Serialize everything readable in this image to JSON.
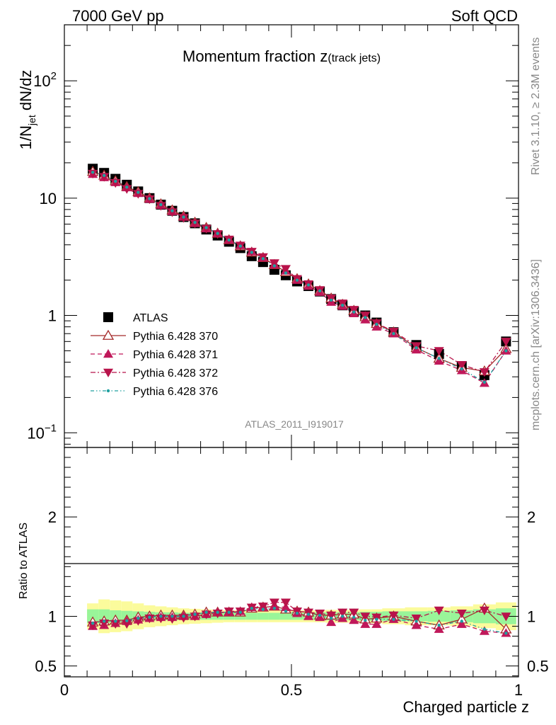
{
  "header": {
    "left": "7000 GeV pp",
    "right": "Soft QCD"
  },
  "side_labels": {
    "rivet": "Rivet 3.1.10, ≥ 2.3M events",
    "mcplots": "mcplots.cern.ch [arXiv:1306.3436]"
  },
  "chart_data": [
    {
      "type": "scatter",
      "panel": "main",
      "title_main": "Momentum fraction z",
      "title_sub": "(track jets)",
      "ylabel": "1/N",
      "ylabel_sub": "jet",
      "ylabel_tail": " dN/dz",
      "yscale": "log",
      "ylim": [
        0.075,
        300
      ],
      "xlim": [
        0,
        1
      ],
      "y_ticks": [
        {
          "value": 0.1,
          "base": "10",
          "exp": "−1"
        },
        {
          "value": 1,
          "base": "1",
          "exp": ""
        },
        {
          "value": 10,
          "base": "10",
          "exp": ""
        },
        {
          "value": 100,
          "base": "10",
          "exp": "2"
        }
      ],
      "watermark": "ATLAS_2011_I919017",
      "legend_position": "left-middle",
      "x": [
        0.0625,
        0.0875,
        0.1125,
        0.1375,
        0.1625,
        0.1875,
        0.2125,
        0.2375,
        0.2625,
        0.2875,
        0.3125,
        0.3375,
        0.3625,
        0.3875,
        0.4125,
        0.4375,
        0.4625,
        0.4875,
        0.5125,
        0.5375,
        0.5625,
        0.5875,
        0.6125,
        0.6375,
        0.6625,
        0.6875,
        0.725,
        0.775,
        0.825,
        0.875,
        0.925,
        0.9725
      ],
      "series": [
        {
          "name": "ATLAS",
          "color": "#000000",
          "marker": "square",
          "values": [
            17.8,
            16.4,
            14.6,
            13.0,
            11.4,
            10.0,
            8.8,
            7.8,
            6.9,
            6.1,
            5.4,
            4.8,
            4.25,
            3.75,
            3.2,
            2.85,
            2.45,
            2.2,
            1.95,
            1.78,
            1.6,
            1.38,
            1.22,
            1.08,
            1.0,
            0.87,
            0.72,
            0.56,
            0.47,
            0.37,
            0.31,
            0.6
          ]
        },
        {
          "name": "Pythia 6.428 370",
          "color": "#a52a2a",
          "marker": "open-triangle-up",
          "line": "solid",
          "values": [
            16.8,
            15.6,
            14.0,
            12.5,
            11.3,
            10.0,
            8.9,
            7.9,
            7.0,
            6.2,
            5.6,
            5.0,
            4.4,
            3.9,
            3.45,
            3.1,
            2.7,
            2.35,
            2.05,
            1.85,
            1.62,
            1.4,
            1.24,
            1.1,
            0.97,
            0.85,
            0.72,
            0.53,
            0.43,
            0.36,
            0.335,
            0.52
          ]
        },
        {
          "name": "Pythia 6.428 371",
          "color": "#c0185a",
          "marker": "triangle-up",
          "line": "dashed",
          "values": [
            16.0,
            15.0,
            13.6,
            12.3,
            11.0,
            9.8,
            8.7,
            7.7,
            6.9,
            6.1,
            5.5,
            5.0,
            4.4,
            3.95,
            3.5,
            3.1,
            2.7,
            2.4,
            2.0,
            1.78,
            1.58,
            1.3,
            1.2,
            1.04,
            0.92,
            0.8,
            0.7,
            0.51,
            0.41,
            0.34,
            0.265,
            0.5
          ]
        },
        {
          "name": "Pythia 6.428 372",
          "color": "#b8134a",
          "marker": "triangle-down",
          "line": "dashdot",
          "values": [
            16.2,
            15.2,
            13.5,
            12.0,
            10.9,
            9.8,
            8.6,
            7.6,
            6.8,
            6.1,
            5.5,
            4.95,
            4.45,
            3.95,
            3.5,
            3.15,
            2.8,
            2.5,
            2.05,
            1.85,
            1.65,
            1.4,
            1.27,
            1.12,
            1.0,
            0.86,
            0.73,
            0.55,
            0.5,
            0.38,
            0.33,
            0.6
          ]
        },
        {
          "name": "Pythia 6.428 376",
          "color": "#20a0a0",
          "marker": "small-dot",
          "line": "dashdotdot",
          "values": [
            16.6,
            15.6,
            13.9,
            12.4,
            11.2,
            9.9,
            8.8,
            7.8,
            6.9,
            6.2,
            5.6,
            5.0,
            4.4,
            3.9,
            3.45,
            3.05,
            2.65,
            2.3,
            2.0,
            1.82,
            1.62,
            1.35,
            1.22,
            1.07,
            0.96,
            0.84,
            0.7,
            0.53,
            0.43,
            0.35,
            0.27,
            0.5
          ]
        }
      ]
    },
    {
      "type": "scatter",
      "panel": "ratio",
      "ylabel": "Ratio to ATLAS",
      "xlabel": "Charged particle z",
      "ylim": [
        0.39,
        2.7
      ],
      "xlim": [
        0,
        1
      ],
      "y_ticks": [
        {
          "value": 0.5,
          "label": "0.5"
        },
        {
          "value": 1,
          "label": "1"
        },
        {
          "value": 2,
          "label": "2"
        }
      ],
      "x_ticks": [
        {
          "value": 0,
          "label": "0"
        },
        {
          "value": 0.5,
          "label": "0.5"
        },
        {
          "value": 1,
          "label": "1"
        }
      ],
      "bands": {
        "inner_color": "#99f599",
        "outer_color": "#fbfb9c",
        "edges": [
          0.05,
          0.075,
          0.1,
          0.125,
          0.15,
          0.175,
          0.2,
          0.225,
          0.25,
          0.275,
          0.3,
          0.325,
          0.35,
          0.375,
          0.4,
          0.425,
          0.45,
          0.475,
          0.5,
          0.525,
          0.55,
          0.575,
          0.6,
          0.625,
          0.65,
          0.675,
          0.7,
          0.75,
          0.8,
          0.85,
          0.9,
          0.95,
          0.995
        ],
        "inner": [
          0.07,
          0.07,
          0.06,
          0.055,
          0.05,
          0.045,
          0.04,
          0.04,
          0.035,
          0.035,
          0.035,
          0.035,
          0.035,
          0.035,
          0.035,
          0.035,
          0.035,
          0.035,
          0.035,
          0.035,
          0.04,
          0.04,
          0.04,
          0.04,
          0.045,
          0.045,
          0.05,
          0.05,
          0.055,
          0.06,
          0.07,
          0.08
        ],
        "outer": [
          0.13,
          0.17,
          0.16,
          0.15,
          0.13,
          0.11,
          0.1,
          0.09,
          0.08,
          0.075,
          0.07,
          0.065,
          0.06,
          0.06,
          0.06,
          0.06,
          0.06,
          0.06,
          0.06,
          0.06,
          0.06,
          0.065,
          0.065,
          0.065,
          0.07,
          0.07,
          0.08,
          0.09,
          0.09,
          0.1,
          0.12,
          0.14
        ]
      },
      "series": [
        {
          "name": "Pythia 6.428 370",
          "values": [
            0.94,
            0.95,
            0.96,
            0.96,
            0.99,
            1.0,
            1.01,
            1.01,
            1.01,
            1.02,
            1.04,
            1.04,
            1.04,
            1.04,
            1.08,
            1.09,
            1.1,
            1.07,
            1.05,
            1.04,
            1.01,
            1.01,
            1.02,
            1.02,
            0.97,
            0.98,
            1.0,
            0.95,
            0.91,
            0.97,
            1.08,
            0.87
          ]
        },
        {
          "name": "Pythia 6.428 371",
          "values": [
            0.9,
            0.91,
            0.93,
            0.95,
            0.965,
            0.98,
            0.99,
            0.99,
            1.0,
            1.0,
            1.02,
            1.04,
            1.04,
            1.05,
            1.09,
            1.09,
            1.1,
            1.09,
            1.03,
            1.0,
            0.99,
            0.94,
            0.98,
            0.96,
            0.92,
            0.92,
            0.97,
            0.91,
            0.87,
            0.92,
            0.85,
            0.83
          ]
        },
        {
          "name": "Pythia 6.428 372",
          "values": [
            0.91,
            0.93,
            0.925,
            0.925,
            0.955,
            0.98,
            0.98,
            0.975,
            0.985,
            1.0,
            1.02,
            1.03,
            1.05,
            1.05,
            1.09,
            1.1,
            1.14,
            1.14,
            1.05,
            1.04,
            1.03,
            1.01,
            1.04,
            1.04,
            1.0,
            0.99,
            1.01,
            0.98,
            1.06,
            1.03,
            1.06,
            1.0
          ]
        },
        {
          "name": "Pythia 6.428 376",
          "values": [
            0.93,
            0.95,
            0.95,
            0.955,
            0.98,
            0.99,
            1.0,
            1.0,
            1.0,
            1.02,
            1.04,
            1.04,
            1.04,
            1.04,
            1.08,
            1.07,
            1.08,
            1.05,
            1.03,
            1.02,
            1.01,
            0.98,
            1.0,
            0.99,
            0.96,
            0.97,
            0.97,
            0.95,
            0.91,
            0.95,
            0.87,
            0.83
          ]
        }
      ]
    }
  ]
}
